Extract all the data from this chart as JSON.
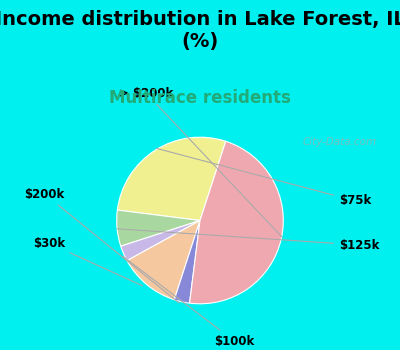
{
  "title": "Income distribution in Lake Forest, IL\n(%)",
  "subtitle": "Multirace residents",
  "labels": [
    "$75k",
    "$125k",
    "$100k",
    "$30k",
    "$200k",
    "> $200k"
  ],
  "sizes": [
    28,
    7,
    3,
    12,
    3,
    47
  ],
  "colors": [
    "#f0f090",
    "#a8d8a0",
    "#c8b8e8",
    "#f5c8a0",
    "#8888d8",
    "#f0a8b0"
  ],
  "background_color": "#00f0f0",
  "plot_bg_gradient_top": "#e8f5e8",
  "plot_bg_gradient_bottom": "#c8e8d0",
  "title_color": "#000000",
  "subtitle_color": "#22aa77",
  "title_fontsize": 14,
  "subtitle_fontsize": 12,
  "label_fontsize": 8.5,
  "startangle": 72,
  "watermark": "City-Data.com"
}
